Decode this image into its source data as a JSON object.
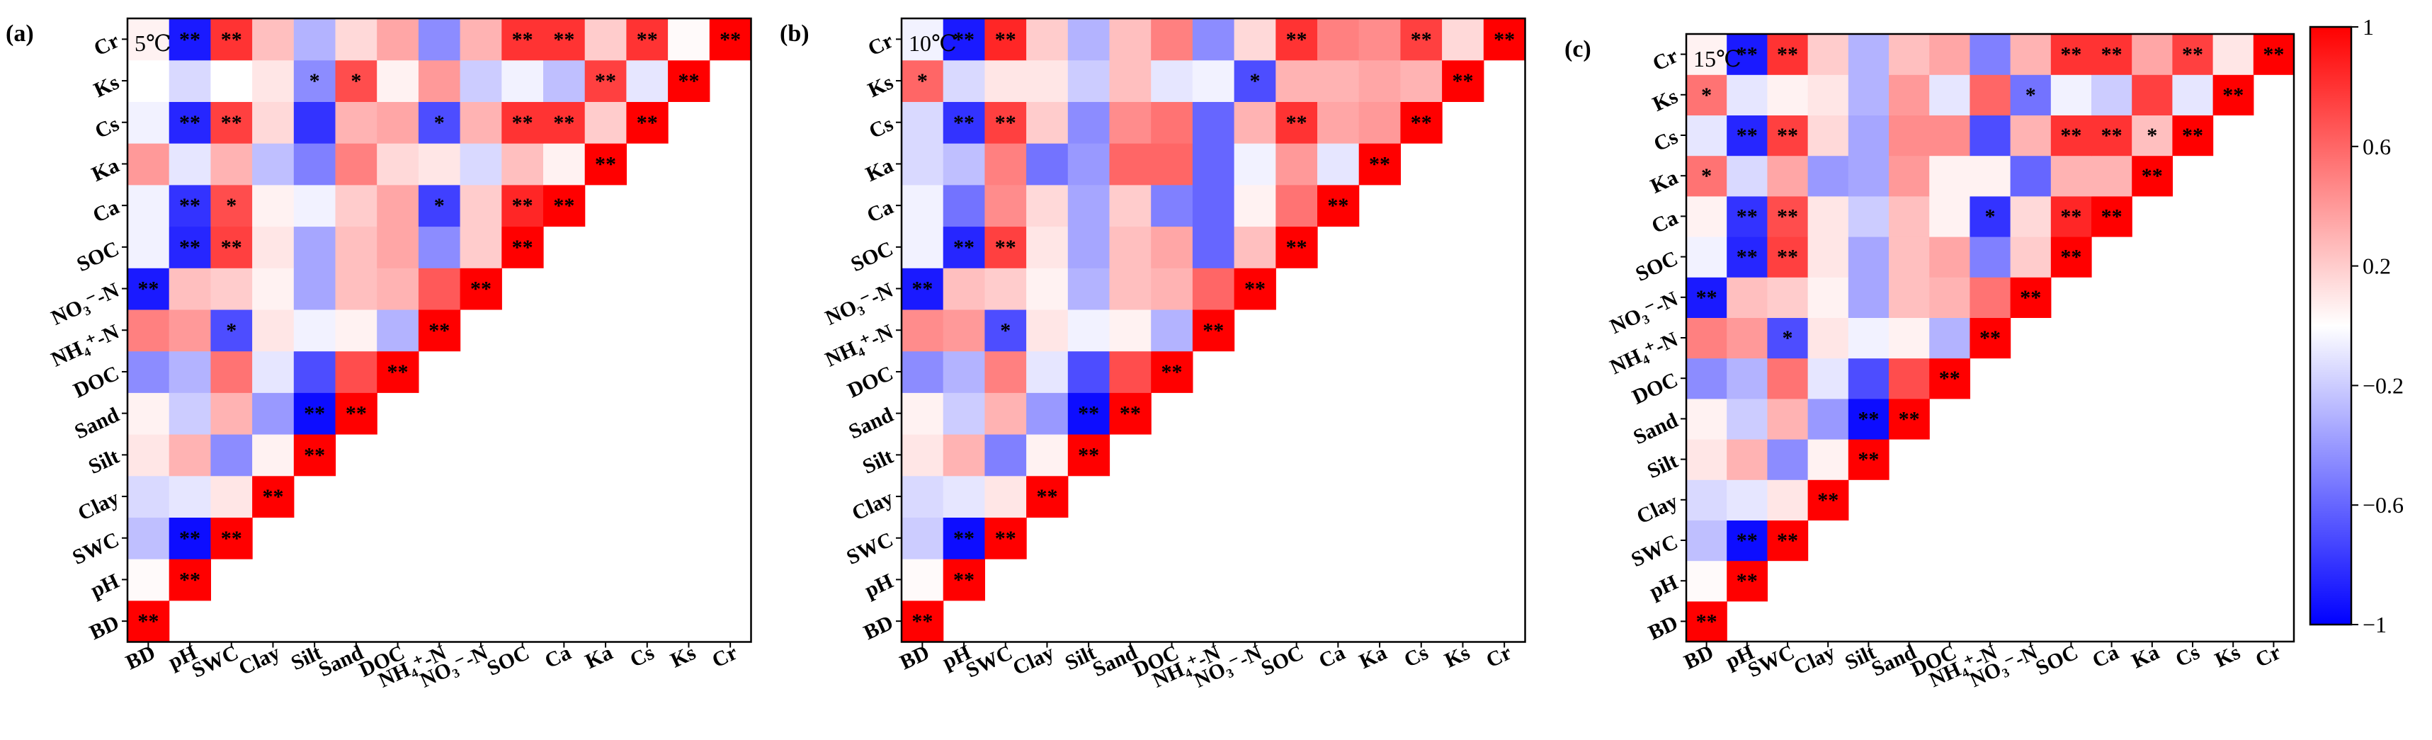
{
  "chart_data": [
    {
      "type": "heatmap",
      "panel_label": "(a)",
      "temperature_label": "5℃",
      "variables": [
        "BD",
        "pH",
        "SWC",
        "Clay",
        "Silt",
        "Sand",
        "DOC",
        "NH₄⁺-N",
        "NO₃⁻-N",
        "SOC",
        "Ca",
        "Ka",
        "Cs",
        "Ks",
        "Cr"
      ],
      "x_tick_labels": [
        "BD",
        "pH",
        "SWC",
        "Clay",
        "Silt",
        "Sand",
        "DOC",
        "NH₄⁺-N",
        "NO₃⁻-N",
        "SOC",
        "Ca",
        "Ka",
        "Cs",
        "Ks",
        "Cr"
      ],
      "y_tick_labels": [
        "Cr",
        "Ks",
        "Cs",
        "Ka",
        "Ca",
        "SOC",
        "NO₃⁻-N",
        "NH₄⁺-N",
        "DOC",
        "Sand",
        "Silt",
        "Clay",
        "SWC",
        "pH",
        "BD"
      ],
      "values": [
        [
          1
        ],
        [
          0.02,
          1
        ],
        [
          -0.25,
          -0.95,
          1
        ],
        [
          -0.15,
          -0.1,
          0.1,
          1
        ],
        [
          0.1,
          0.3,
          -0.45,
          0.05,
          1
        ],
        [
          0.05,
          -0.2,
          0.3,
          -0.4,
          -0.95,
          1
        ],
        [
          -0.45,
          -0.3,
          0.55,
          -0.1,
          -0.7,
          0.7,
          1
        ],
        [
          0.5,
          0.4,
          -0.7,
          0.1,
          -0.05,
          0.05,
          -0.3,
          1
        ],
        [
          -0.9,
          0.25,
          0.2,
          0.05,
          -0.35,
          0.25,
          0.3,
          0.65,
          1
        ],
        [
          -0.05,
          -0.85,
          0.75,
          0.1,
          -0.35,
          0.25,
          0.35,
          -0.45,
          0.2,
          1
        ],
        [
          -0.05,
          -0.8,
          0.7,
          0.05,
          -0.05,
          0.2,
          0.35,
          -0.75,
          0.2,
          0.85,
          1
        ],
        [
          0.4,
          -0.1,
          0.3,
          -0.25,
          -0.5,
          0.5,
          0.15,
          0.1,
          -0.15,
          0.25,
          0.05,
          1
        ],
        [
          -0.05,
          -0.85,
          0.75,
          0.15,
          -0.8,
          0.3,
          0.35,
          -0.7,
          0.3,
          0.8,
          0.8,
          0.2,
          1
        ],
        [
          0,
          -0.15,
          0,
          0.1,
          -0.45,
          0.7,
          0.05,
          0.4,
          -0.2,
          -0.05,
          -0.25,
          0.75,
          -0.1,
          1
        ],
        [
          0.05,
          -0.9,
          0.8,
          0.25,
          -0.3,
          0.15,
          0.35,
          -0.45,
          0.3,
          0.8,
          0.8,
          0.2,
          0.8,
          0.02,
          1
        ]
      ],
      "significance": [
        [
          "**"
        ],
        [
          "",
          "**"
        ],
        [
          "",
          "**",
          "**"
        ],
        [
          "",
          "",
          "",
          "**"
        ],
        [
          "",
          "",
          "",
          "",
          "**"
        ],
        [
          "",
          "",
          "",
          "",
          "**",
          "**"
        ],
        [
          "",
          "",
          "",
          "",
          "",
          "",
          "**"
        ],
        [
          "",
          "",
          "*",
          "",
          "",
          "",
          "",
          "**"
        ],
        [
          "**",
          "",
          "",
          "",
          "",
          "",
          "",
          "",
          "**"
        ],
        [
          "",
          "**",
          "**",
          "",
          "",
          "",
          "",
          "",
          "",
          "**"
        ],
        [
          "",
          "**",
          "*",
          "",
          "",
          "",
          "",
          "*",
          "",
          "**",
          "**"
        ],
        [
          "",
          "",
          "",
          "",
          "",
          "",
          "",
          "",
          "",
          "",
          "",
          "**"
        ],
        [
          "",
          "**",
          "**",
          "",
          "",
          "",
          "",
          "*",
          "",
          "**",
          "**",
          "",
          "**"
        ],
        [
          "",
          "",
          "",
          "",
          "*",
          "*",
          "",
          "",
          "",
          "",
          "",
          "**",
          "",
          "**"
        ],
        [
          "",
          "**",
          "**",
          "",
          "",
          "",
          "",
          "",
          "",
          "**",
          "**",
          "",
          "**",
          "",
          "**"
        ]
      ]
    },
    {
      "type": "heatmap",
      "panel_label": "(b)",
      "temperature_label": "10℃",
      "variables": [
        "BD",
        "pH",
        "SWC",
        "Clay",
        "Silt",
        "Sand",
        "DOC",
        "NH₄⁺-N",
        "NO₃⁻-N",
        "SOC",
        "Ca",
        "Ka",
        "Cs",
        "Ks",
        "Cr"
      ],
      "x_tick_labels": [
        "BD",
        "pH",
        "SWC",
        "Clay",
        "Silt",
        "Sand",
        "DOC",
        "NH₄⁺-N",
        "NO₃⁻-N",
        "SOC",
        "Ca",
        "Ka",
        "Cs",
        "Ks",
        "Cr"
      ],
      "y_tick_labels": [
        "Cr",
        "Ks",
        "Cs",
        "Ka",
        "Ca",
        "SOC",
        "NO₃⁻-N",
        "NH₄⁺-N",
        "DOC",
        "Sand",
        "Silt",
        "Clay",
        "SWC",
        "pH",
        "BD"
      ],
      "values": [
        [
          1
        ],
        [
          0.02,
          1
        ],
        [
          -0.2,
          -0.95,
          1
        ],
        [
          -0.15,
          -0.1,
          0.1,
          1
        ],
        [
          0.1,
          0.3,
          -0.5,
          0.05,
          1
        ],
        [
          0.05,
          -0.2,
          0.3,
          -0.4,
          -0.95,
          1
        ],
        [
          -0.45,
          -0.3,
          0.5,
          -0.1,
          -0.7,
          0.7,
          1
        ],
        [
          0.45,
          0.4,
          -0.7,
          0.1,
          -0.05,
          0.05,
          -0.3,
          1
        ],
        [
          -0.9,
          0.25,
          0.2,
          0.05,
          -0.3,
          0.25,
          0.3,
          0.6,
          1
        ],
        [
          -0.05,
          -0.85,
          0.75,
          0.1,
          -0.35,
          0.25,
          0.35,
          -0.6,
          0.25,
          1
        ],
        [
          -0.05,
          -0.55,
          0.45,
          0.15,
          -0.35,
          0.2,
          -0.5,
          -0.6,
          0.05,
          0.55,
          1
        ],
        [
          -0.15,
          -0.25,
          0.5,
          -0.55,
          -0.4,
          0.6,
          0.6,
          -0.6,
          -0.05,
          0.4,
          -0.1,
          1
        ],
        [
          -0.15,
          -0.8,
          0.75,
          0.2,
          -0.45,
          0.45,
          0.55,
          -0.6,
          0.3,
          0.8,
          0.35,
          0.4,
          1
        ],
        [
          0.6,
          -0.15,
          0.1,
          0.1,
          -0.2,
          0.25,
          -0.1,
          -0.05,
          -0.7,
          0.3,
          0.3,
          0.35,
          0.3,
          1
        ],
        [
          -0.05,
          -0.9,
          0.85,
          0.2,
          -0.3,
          0.25,
          0.5,
          -0.45,
          0.15,
          0.8,
          0.5,
          0.45,
          0.75,
          0.15,
          1
        ]
      ],
      "significance": [
        [
          "**"
        ],
        [
          "",
          "**"
        ],
        [
          "",
          "**",
          "**"
        ],
        [
          "",
          "",
          "",
          "**"
        ],
        [
          "",
          "",
          "",
          "",
          "**"
        ],
        [
          "",
          "",
          "",
          "",
          "**",
          "**"
        ],
        [
          "",
          "",
          "",
          "",
          "",
          "",
          "**"
        ],
        [
          "",
          "",
          "*",
          "",
          "",
          "",
          "",
          "**"
        ],
        [
          "**",
          "",
          "",
          "",
          "",
          "",
          "",
          "",
          "**"
        ],
        [
          "",
          "**",
          "**",
          "",
          "",
          "",
          "",
          "",
          "",
          "**"
        ],
        [
          "",
          "",
          "",
          "",
          "",
          "",
          "",
          "",
          "",
          "",
          "**"
        ],
        [
          "",
          "",
          "",
          "",
          "",
          "",
          "",
          "",
          "",
          "",
          "",
          "**"
        ],
        [
          "",
          "**",
          "**",
          "",
          "",
          "",
          "",
          "",
          "",
          "**",
          "",
          "",
          "**"
        ],
        [
          "*",
          "",
          "",
          "",
          "",
          "",
          "",
          "",
          "*",
          "",
          "",
          "",
          "",
          "**"
        ],
        [
          "",
          "**",
          "**",
          "",
          "",
          "",
          "",
          "",
          "",
          "**",
          "",
          "",
          "**",
          "",
          "**"
        ]
      ]
    },
    {
      "type": "heatmap",
      "panel_label": "(c)",
      "temperature_label": "15℃",
      "variables": [
        "BD",
        "pH",
        "SWC",
        "Clay",
        "Silt",
        "Sand",
        "DOC",
        "NH₄⁺-N",
        "NO₃⁻-N",
        "SOC",
        "Ca",
        "Ka",
        "Cs",
        "Ks",
        "Cr"
      ],
      "x_tick_labels": [
        "BD",
        "pH",
        "SWC",
        "Clay",
        "Silt",
        "Sand",
        "DOC",
        "NH₄⁺-N",
        "NO₃⁻-N",
        "SOC",
        "Ca",
        "Ka",
        "Cs",
        "Ks",
        "Cr"
      ],
      "y_tick_labels": [
        "Cr",
        "Ks",
        "Cs",
        "Ka",
        "Ca",
        "SOC",
        "NO₃⁻-N",
        "NH₄⁺-N",
        "DOC",
        "Sand",
        "Silt",
        "Clay",
        "SWC",
        "pH",
        "BD"
      ],
      "values": [
        [
          1
        ],
        [
          0.02,
          1
        ],
        [
          -0.25,
          -0.95,
          1
        ],
        [
          -0.15,
          -0.1,
          0.1,
          1
        ],
        [
          0.1,
          0.3,
          -0.45,
          0.05,
          1
        ],
        [
          0.05,
          -0.2,
          0.3,
          -0.4,
          -0.95,
          1
        ],
        [
          -0.45,
          -0.3,
          0.55,
          -0.1,
          -0.7,
          0.7,
          1
        ],
        [
          0.5,
          0.4,
          -0.7,
          0.1,
          -0.05,
          0.05,
          -0.3,
          1
        ],
        [
          -0.9,
          0.25,
          0.2,
          0.05,
          -0.35,
          0.25,
          0.3,
          0.55,
          1
        ],
        [
          -0.05,
          -0.85,
          0.75,
          0.1,
          -0.35,
          0.25,
          0.35,
          -0.5,
          0.2,
          1
        ],
        [
          0.05,
          -0.8,
          0.7,
          0.1,
          -0.2,
          0.25,
          0.05,
          -0.8,
          0.15,
          0.85,
          1
        ],
        [
          0.55,
          -0.15,
          0.35,
          -0.4,
          -0.35,
          0.4,
          0.05,
          0.05,
          -0.6,
          0.3,
          0.3,
          1
        ],
        [
          -0.1,
          -0.85,
          0.75,
          0.15,
          -0.35,
          0.45,
          0.45,
          -0.7,
          0.3,
          0.8,
          0.8,
          0.25,
          1
        ],
        [
          0.55,
          -0.1,
          0.05,
          0.1,
          -0.3,
          0.4,
          -0.1,
          0.6,
          -0.55,
          -0.05,
          -0.2,
          0.75,
          -0.1,
          1
        ],
        [
          0.05,
          -0.9,
          0.8,
          0.2,
          -0.3,
          0.25,
          0.35,
          -0.5,
          0.3,
          0.8,
          0.8,
          0.35,
          0.75,
          0.1,
          1
        ]
      ],
      "significance": [
        [
          "**"
        ],
        [
          "",
          "**"
        ],
        [
          "",
          "**",
          "**"
        ],
        [
          "",
          "",
          "",
          "**"
        ],
        [
          "",
          "",
          "",
          "",
          "**"
        ],
        [
          "",
          "",
          "",
          "",
          "**",
          "**"
        ],
        [
          "",
          "",
          "",
          "",
          "",
          "",
          "**"
        ],
        [
          "",
          "",
          "*",
          "",
          "",
          "",
          "",
          "**"
        ],
        [
          "**",
          "",
          "",
          "",
          "",
          "",
          "",
          "",
          "**"
        ],
        [
          "",
          "**",
          "**",
          "",
          "",
          "",
          "",
          "",
          "",
          "**"
        ],
        [
          "",
          "**",
          "**",
          "",
          "",
          "",
          "",
          "*",
          "",
          "**",
          "**"
        ],
        [
          "*",
          "",
          "",
          "",
          "",
          "",
          "",
          "",
          "",
          "",
          "",
          "**"
        ],
        [
          "",
          "**",
          "**",
          "",
          "",
          "",
          "",
          "",
          "",
          "**",
          "**",
          "*",
          "**"
        ],
        [
          "*",
          "",
          "",
          "",
          "",
          "",
          "",
          "",
          "*",
          "",
          "",
          "",
          "",
          "**"
        ],
        [
          "",
          "**",
          "**",
          "",
          "",
          "",
          "",
          "",
          "",
          "**",
          "**",
          "",
          "**",
          "",
          "**"
        ]
      ]
    }
  ],
  "colorbar": {
    "range": [
      -1,
      1
    ],
    "tick_values": [
      1,
      0.6,
      0.2,
      -0.2,
      -0.6,
      -1
    ],
    "tick_labels": [
      "1",
      "0.6",
      "0.2",
      "−0.2",
      "−0.6",
      "−1"
    ],
    "colors": {
      "negative": "#0000ff",
      "zero": "#ffffff",
      "positive": "#ff0000"
    }
  }
}
